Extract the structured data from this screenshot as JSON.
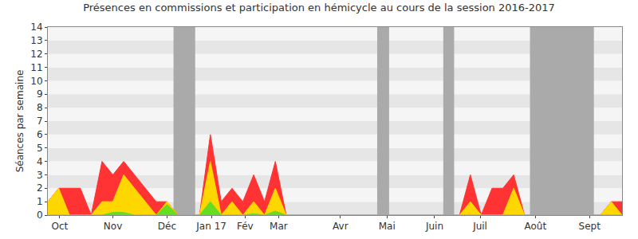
{
  "chart_data": {
    "type": "area",
    "title": "Présences en commissions et participation en hémicycle au cours de la session 2016-2017",
    "y_label": "Séances par semaine",
    "x": [
      0,
      1,
      2,
      3,
      4,
      5,
      6,
      7,
      8,
      9,
      10,
      11,
      12,
      13,
      14,
      15,
      16,
      17,
      18,
      19,
      20,
      21,
      22,
      23,
      24,
      25,
      26,
      27,
      28,
      29,
      30,
      31,
      32,
      33,
      34,
      35,
      36,
      37,
      38,
      39,
      40,
      41,
      42,
      43,
      44,
      45,
      46,
      47,
      48,
      49,
      50,
      51,
      52,
      53
    ],
    "series": [
      {
        "color": "#ff3333",
        "values": [
          1,
          2,
          2,
          2,
          0,
          4,
          3,
          4,
          3,
          2,
          1,
          1,
          0,
          0,
          0,
          6,
          1,
          2,
          1,
          3,
          1,
          4,
          0,
          0,
          0,
          0,
          0,
          0,
          0,
          0,
          0,
          0,
          0,
          0,
          0,
          0,
          0,
          0,
          0,
          3,
          0,
          2,
          2,
          3,
          0,
          0,
          0,
          0,
          0,
          0,
          0,
          0,
          1,
          1
        ]
      },
      {
        "color": "#ffd700",
        "values": [
          1,
          2,
          0,
          0,
          0,
          1,
          1,
          3,
          2,
          1,
          0,
          1,
          0,
          0,
          0,
          4,
          0,
          1,
          0,
          1,
          0,
          2,
          0,
          0,
          0,
          0,
          0,
          0,
          0,
          0,
          0,
          0,
          0,
          0,
          0,
          0,
          0,
          0,
          0,
          1,
          0,
          0,
          0,
          2,
          0,
          0,
          0,
          0,
          0,
          0,
          0,
          0,
          1,
          0
        ]
      },
      {
        "color": "#66dd22",
        "values": [
          0,
          0,
          0,
          0,
          0,
          0,
          0.2,
          0.2,
          0,
          0,
          0,
          0.8,
          0,
          0,
          0,
          1,
          0,
          0,
          0,
          0.1,
          0,
          0.3,
          0,
          0,
          0,
          0,
          0,
          0,
          0,
          0,
          0,
          0,
          0,
          0,
          0,
          0,
          0,
          0,
          0,
          0,
          0,
          0,
          0,
          0,
          0,
          0,
          0,
          0,
          0,
          0,
          0,
          0,
          0,
          0
        ]
      }
    ],
    "shaded_ranges": [
      [
        11.6,
        13.6
      ],
      [
        30.4,
        31.5
      ],
      [
        36.5,
        37.5
      ],
      [
        44.5,
        50.4
      ]
    ],
    "xlim": [
      0,
      53
    ],
    "xticks": [
      {
        "value": 1.1,
        "label": "Oct"
      },
      {
        "value": 6.0,
        "label": "Nov"
      },
      {
        "value": 11.0,
        "label": "Déc"
      },
      {
        "value": 15.1,
        "label": "Jan 17"
      },
      {
        "value": 18.2,
        "label": "Fév"
      },
      {
        "value": 21.3,
        "label": "Mar"
      },
      {
        "value": 27.0,
        "label": "Avr"
      },
      {
        "value": 31.3,
        "label": "Mai"
      },
      {
        "value": 35.7,
        "label": "Juin"
      },
      {
        "value": 39.9,
        "label": "Juil"
      },
      {
        "value": 45.0,
        "label": "Août"
      },
      {
        "value": 50.0,
        "label": "Sept"
      }
    ],
    "ylim": [
      0,
      14
    ],
    "yticks": [
      0,
      1,
      2,
      3,
      4,
      5,
      6,
      7,
      8,
      9,
      10,
      11,
      12,
      13,
      14
    ],
    "grid": true
  }
}
